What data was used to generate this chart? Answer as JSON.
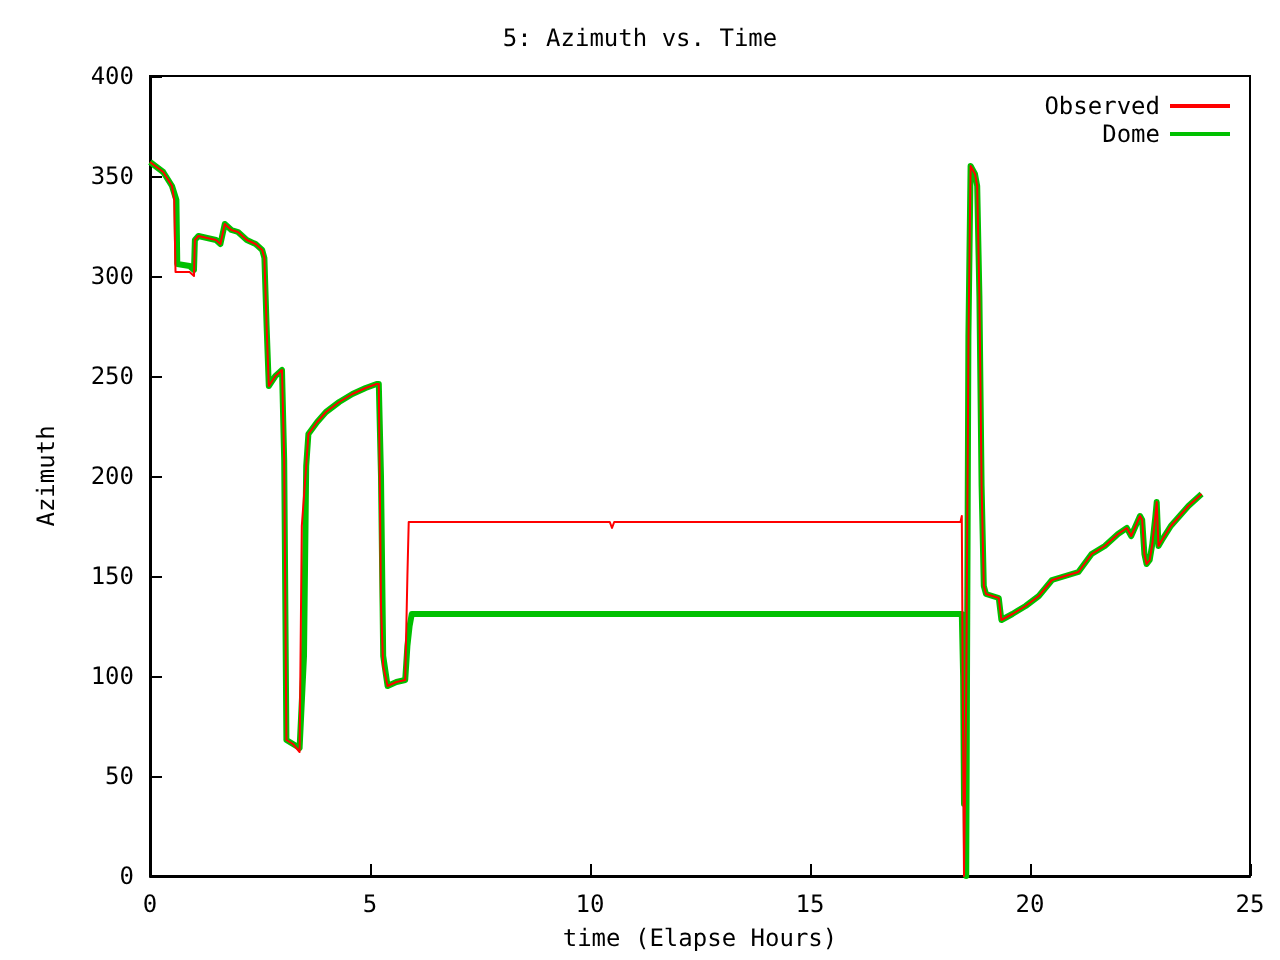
{
  "chart_data": {
    "type": "line",
    "title": "5: Azimuth vs. Time",
    "xlabel": "time (Elapse Hours)",
    "ylabel": "Azimuth",
    "xlim": [
      0,
      25
    ],
    "xticks": [
      0,
      5,
      10,
      15,
      20,
      25
    ],
    "ylim": [
      0,
      400
    ],
    "yticks": [
      0,
      50,
      100,
      150,
      200,
      250,
      300,
      350,
      400
    ],
    "grid": false,
    "legend": "top right",
    "marker": "none",
    "line_style": "solid",
    "series": [
      {
        "name": "Observed",
        "color": "#ff0000",
        "x": [
          0,
          0.3,
          0.5,
          0.55,
          0.58,
          0.9,
          1.0,
          1.02,
          1.1,
          1.3,
          1.5,
          1.6,
          1.7,
          1.85,
          2.0,
          2.2,
          2.4,
          2.55,
          2.6,
          2.65,
          2.7,
          2.85,
          3.0,
          3.05,
          3.1,
          3.25,
          3.4,
          3.45,
          3.55,
          3.6,
          3.8,
          4.0,
          4.3,
          4.6,
          4.9,
          5.15,
          5.2,
          5.25,
          5.3,
          5.4,
          5.6,
          5.8,
          5.85,
          5.88,
          10.45,
          10.5,
          10.55,
          18.42,
          18.45,
          18.47,
          18.5,
          18.55,
          18.6,
          18.65,
          18.75,
          18.8,
          18.85,
          18.9,
          18.95,
          19.0,
          19.29,
          19.35,
          19.6,
          19.9,
          20.2,
          20.5,
          20.8,
          21.1,
          21.4,
          21.7,
          22.0,
          22.2,
          22.3,
          22.5,
          22.55,
          22.6,
          22.65,
          22.72,
          22.78,
          22.85,
          22.88,
          22.92,
          23.0,
          23.2,
          23.4,
          23.6,
          23.9
        ],
        "values": [
          357,
          352,
          345,
          338,
          302,
          302,
          300,
          318,
          320,
          319,
          318,
          316,
          326,
          323,
          322,
          318,
          316,
          313,
          309,
          275,
          245,
          250,
          253,
          208,
          68,
          66,
          62,
          175,
          205,
          221,
          227,
          232,
          237,
          241,
          244,
          246,
          246,
          135,
          105,
          95,
          97,
          98,
          150,
          177,
          177,
          174,
          177,
          177,
          180,
          100,
          0,
          90,
          265,
          355,
          351,
          345,
          290,
          195,
          145,
          141,
          139,
          128,
          131,
          135,
          140,
          148,
          150,
          152,
          161,
          165,
          171,
          174,
          170,
          180,
          178,
          161,
          156,
          158,
          166,
          180,
          187,
          165,
          168,
          175,
          180,
          185,
          191
        ]
      },
      {
        "name": "Dome",
        "color": "#00c000",
        "x": [
          0,
          0.3,
          0.5,
          0.6,
          0.62,
          0.9,
          1.0,
          1.02,
          1.1,
          1.3,
          1.5,
          1.6,
          1.7,
          1.85,
          2.0,
          2.2,
          2.4,
          2.55,
          2.6,
          2.65,
          2.7,
          2.85,
          3.0,
          3.05,
          3.1,
          3.25,
          3.4,
          3.5,
          3.55,
          3.6,
          3.8,
          4.0,
          4.3,
          4.6,
          4.9,
          5.15,
          5.2,
          5.25,
          5.3,
          5.4,
          5.6,
          5.8,
          5.85,
          5.9,
          5.95,
          18.45,
          18.48,
          18.5,
          18.52,
          18.55,
          18.6,
          18.65,
          18.75,
          18.8,
          18.85,
          18.9,
          18.95,
          19.0,
          19.29,
          19.35,
          19.6,
          19.9,
          20.2,
          20.5,
          20.8,
          21.1,
          21.4,
          21.7,
          22.0,
          22.2,
          22.3,
          22.5,
          22.55,
          22.6,
          22.65,
          22.72,
          22.78,
          22.85,
          22.88,
          22.92,
          23.0,
          23.2,
          23.4,
          23.6,
          23.9
        ],
        "values": [
          357,
          352,
          345,
          338,
          306,
          305,
          303,
          318,
          320,
          319,
          318,
          316,
          326,
          323,
          322,
          318,
          316,
          313,
          309,
          275,
          245,
          250,
          253,
          208,
          68,
          66,
          64,
          110,
          205,
          221,
          227,
          232,
          237,
          241,
          244,
          246,
          246,
          200,
          110,
          95,
          97,
          98,
          115,
          125,
          131,
          131,
          100,
          36,
          90,
          0,
          270,
          355,
          351,
          345,
          290,
          195,
          145,
          141,
          139,
          128,
          131,
          135,
          140,
          148,
          150,
          152,
          161,
          165,
          171,
          174,
          170,
          180,
          178,
          161,
          156,
          158,
          166,
          180,
          187,
          165,
          168,
          175,
          180,
          185,
          191
        ]
      }
    ]
  }
}
